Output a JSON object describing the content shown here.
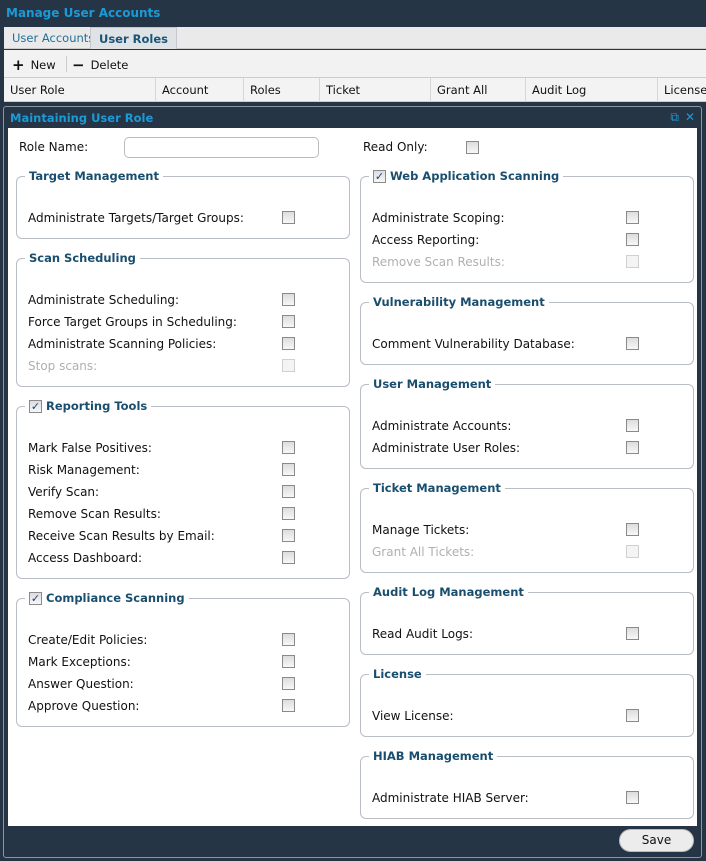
{
  "window": {
    "title": "Manage User Accounts"
  },
  "tabs": [
    {
      "label": "User Accounts",
      "active": false
    },
    {
      "label": "User Roles",
      "active": true
    }
  ],
  "toolbar": {
    "new_label": "New",
    "delete_label": "Delete"
  },
  "grid": {
    "columns": [
      "User Role",
      "Account Admin",
      "Roles Admin",
      "Ticket Management",
      "Grant All Tickets",
      "Audit Log Management",
      "License"
    ]
  },
  "dialog": {
    "title": "Maintaining User Role",
    "role_name_label": "Role Name:",
    "role_name_value": "",
    "read_only_label": "Read Only:",
    "read_only_checked": false,
    "left_groups": [
      {
        "title": "Target Management",
        "has_checkbox": false,
        "items": [
          {
            "label": "Administrate Targets/Target Groups:",
            "checked": false,
            "disabled": false
          }
        ]
      },
      {
        "title": "Scan Scheduling",
        "has_checkbox": false,
        "items": [
          {
            "label": "Administrate Scheduling:",
            "checked": false,
            "disabled": false
          },
          {
            "label": "Force Target Groups in Scheduling:",
            "checked": false,
            "disabled": false
          },
          {
            "label": "Administrate Scanning Policies:",
            "checked": false,
            "disabled": false
          },
          {
            "label": "Stop scans:",
            "checked": false,
            "disabled": true
          }
        ]
      },
      {
        "title": "Reporting Tools",
        "has_checkbox": true,
        "checked": true,
        "items": [
          {
            "label": "Mark False Positives:",
            "checked": false,
            "disabled": false
          },
          {
            "label": "Risk Management:",
            "checked": false,
            "disabled": false
          },
          {
            "label": "Verify Scan:",
            "checked": false,
            "disabled": false
          },
          {
            "label": "Remove Scan Results:",
            "checked": false,
            "disabled": false
          },
          {
            "label": "Receive Scan Results by Email:",
            "checked": false,
            "disabled": false
          },
          {
            "label": "Access Dashboard:",
            "checked": false,
            "disabled": false
          }
        ]
      },
      {
        "title": "Compliance Scanning",
        "has_checkbox": true,
        "checked": true,
        "items": [
          {
            "label": "Create/Edit Policies:",
            "checked": false,
            "disabled": false
          },
          {
            "label": "Mark Exceptions:",
            "checked": false,
            "disabled": false
          },
          {
            "label": "Answer Question:",
            "checked": false,
            "disabled": false
          },
          {
            "label": "Approve Question:",
            "checked": false,
            "disabled": false
          }
        ]
      }
    ],
    "right_groups": [
      {
        "title": "Web Application Scanning",
        "has_checkbox": true,
        "checked": true,
        "items": [
          {
            "label": "Administrate Scoping:",
            "checked": false,
            "disabled": false
          },
          {
            "label": "Access Reporting:",
            "checked": false,
            "disabled": false
          },
          {
            "label": "Remove Scan Results:",
            "checked": false,
            "disabled": true
          }
        ]
      },
      {
        "title": "Vulnerability Management",
        "has_checkbox": false,
        "items": [
          {
            "label": "Comment Vulnerability Database:",
            "checked": false,
            "disabled": false
          }
        ]
      },
      {
        "title": "User Management",
        "has_checkbox": false,
        "items": [
          {
            "label": "Administrate Accounts:",
            "checked": false,
            "disabled": false
          },
          {
            "label": "Administrate User Roles:",
            "checked": false,
            "disabled": false
          }
        ]
      },
      {
        "title": "Ticket Management",
        "has_checkbox": false,
        "items": [
          {
            "label": "Manage Tickets:",
            "checked": false,
            "disabled": false
          },
          {
            "label": "Grant All Tickets:",
            "checked": false,
            "disabled": true
          }
        ]
      },
      {
        "title": "Audit Log Management",
        "has_checkbox": false,
        "items": [
          {
            "label": "Read Audit Logs:",
            "checked": false,
            "disabled": false
          }
        ]
      },
      {
        "title": "License",
        "has_checkbox": false,
        "items": [
          {
            "label": "View License:",
            "checked": false,
            "disabled": false
          }
        ]
      },
      {
        "title": "HIAB Management",
        "has_checkbox": false,
        "items": [
          {
            "label": "Administrate HIAB Server:",
            "checked": false,
            "disabled": false
          }
        ]
      }
    ],
    "save_label": "Save"
  },
  "colors": {
    "title_bar": "#253545",
    "accent": "#1c9ad6",
    "legend": "#1a4e6e"
  }
}
